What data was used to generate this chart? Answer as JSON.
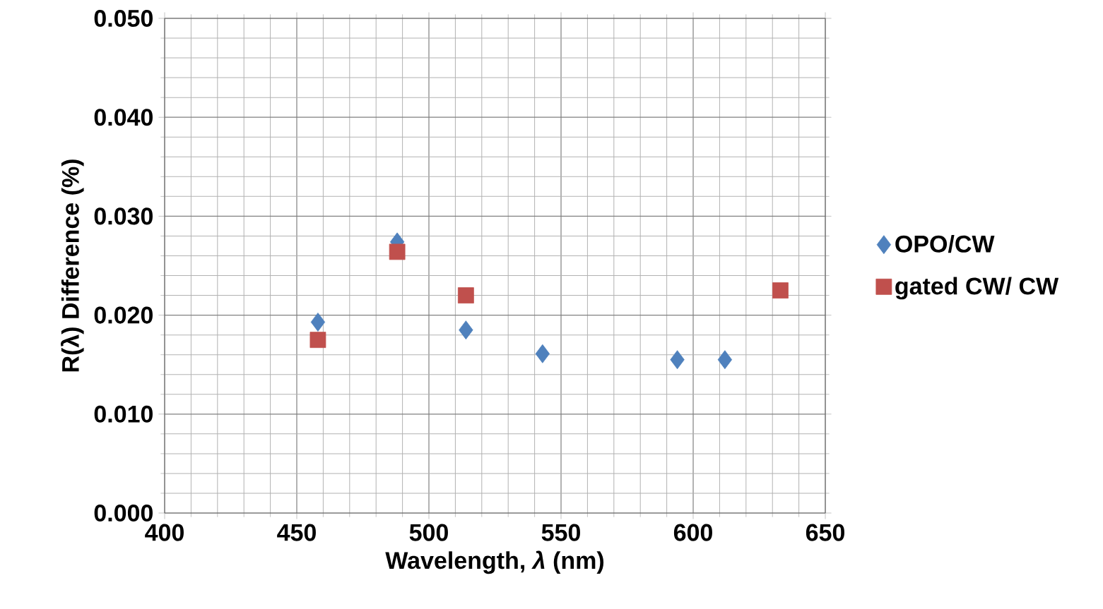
{
  "chart_data": {
    "type": "scatter",
    "xlabel": "Wavelength,  *λ* (nm)",
    "ylabel": "R(λ) Difference (%)",
    "xlim": [
      400,
      650
    ],
    "xticks": [
      400,
      450,
      500,
      550,
      600,
      650
    ],
    "ylim": [
      0,
      0.05
    ],
    "yticks": [
      {
        "value": 0,
        "label": "0.000"
      },
      {
        "value": 0.01,
        "label": "0.010"
      },
      {
        "value": 0.02,
        "label": "0.020"
      },
      {
        "value": 0.03,
        "label": "0.030"
      },
      {
        "value": 0.04,
        "label": "0.040"
      },
      {
        "value": 0.05,
        "label": "0.050"
      }
    ],
    "grid": true,
    "legend": "right",
    "series": [
      {
        "name": "OPO/CW",
        "color": "#4f81bd",
        "marker": "diamond",
        "x": [
          458,
          488,
          514,
          543,
          594,
          612
        ],
        "values": [
          0.0193,
          0.0274,
          0.0185,
          0.0161,
          0.0155,
          0.0155
        ]
      },
      {
        "name": "gated CW/ CW",
        "color": "#c0504d",
        "marker": "square",
        "x": [
          458,
          488,
          514,
          633
        ],
        "values": [
          0.0175,
          0.0264,
          0.022,
          0.0225
        ]
      }
    ]
  }
}
